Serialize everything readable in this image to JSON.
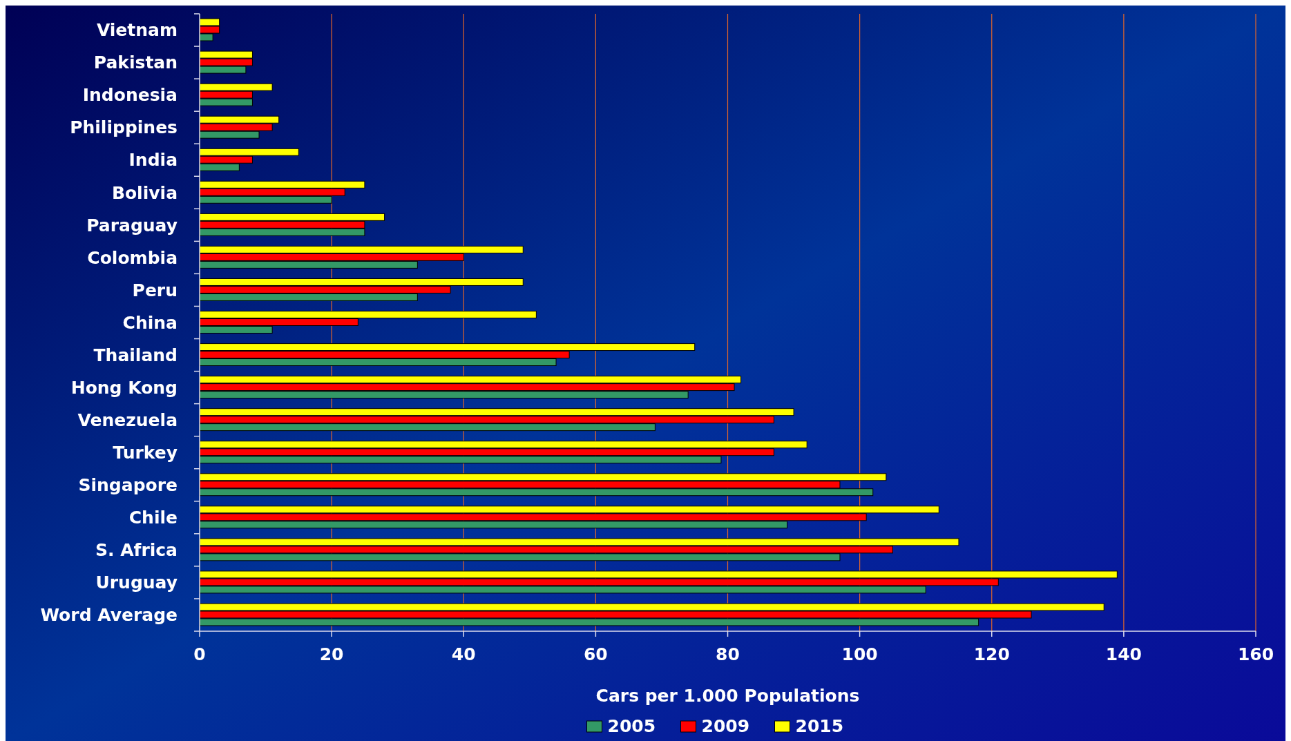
{
  "chart_data": {
    "type": "bar",
    "orientation": "horizontal",
    "xlabel": "Cars per 1.000 Populations",
    "categories": [
      "Vietnam",
      "Pakistan",
      "Indonesia",
      "Philippines",
      "India",
      "Bolivia",
      "Paraguay",
      "Colombia",
      "Peru",
      "China",
      "Thailand",
      "Hong Kong",
      "Venezuela",
      "Turkey",
      "Singapore",
      "Chile",
      "S. Africa",
      "Uruguay",
      "Word Average"
    ],
    "series": [
      {
        "name": "2005",
        "color": "#339966",
        "values": [
          2,
          7,
          8,
          9,
          6,
          20,
          25,
          33,
          33,
          11,
          54,
          74,
          69,
          79,
          102,
          89,
          97,
          110,
          118
        ]
      },
      {
        "name": "2009",
        "color": "#ff0000",
        "values": [
          3,
          8,
          8,
          11,
          8,
          22,
          25,
          40,
          38,
          24,
          56,
          81,
          87,
          87,
          97,
          101,
          105,
          121,
          126
        ]
      },
      {
        "name": "2015",
        "color": "#ffff00",
        "values": [
          3,
          8,
          11,
          12,
          15,
          25,
          28,
          49,
          49,
          51,
          75,
          82,
          90,
          92,
          104,
          112,
          115,
          139,
          137
        ]
      }
    ],
    "xlim": [
      0,
      160
    ],
    "xticks": [
      0,
      20,
      40,
      60,
      80,
      100,
      120,
      140,
      160
    ],
    "grid": "x",
    "legend": "bottom"
  }
}
